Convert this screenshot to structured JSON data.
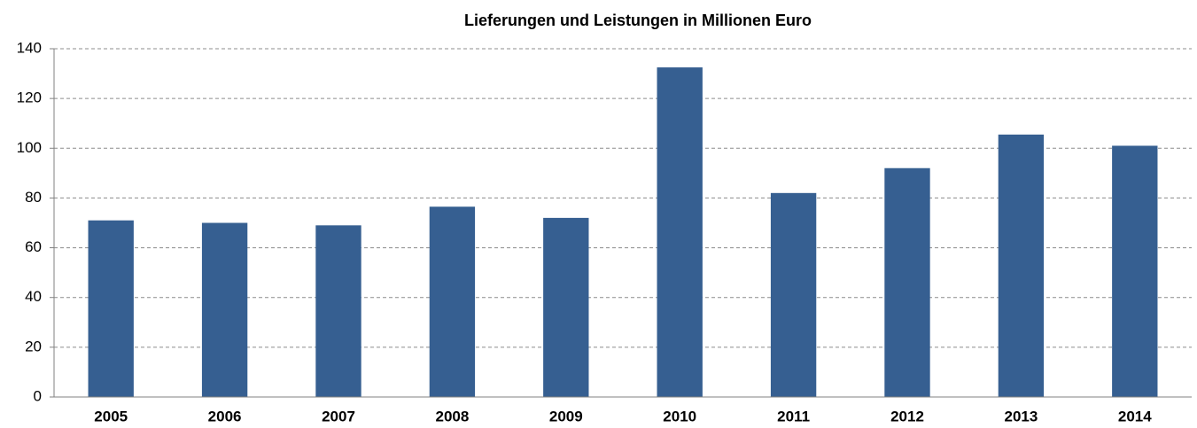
{
  "chart_data": {
    "type": "bar",
    "title": "Lieferungen und Leistungen in Millionen Euro",
    "categories": [
      "2005",
      "2006",
      "2007",
      "2008",
      "2009",
      "2010",
      "2011",
      "2012",
      "2013",
      "2014"
    ],
    "values": [
      71,
      70,
      69,
      76.5,
      72,
      132.5,
      82,
      92,
      105.5,
      101
    ],
    "color": "#365f91",
    "ylim": [
      0,
      140
    ],
    "yticks": [
      0,
      20,
      40,
      60,
      80,
      100,
      120,
      140
    ],
    "grid": true
  }
}
